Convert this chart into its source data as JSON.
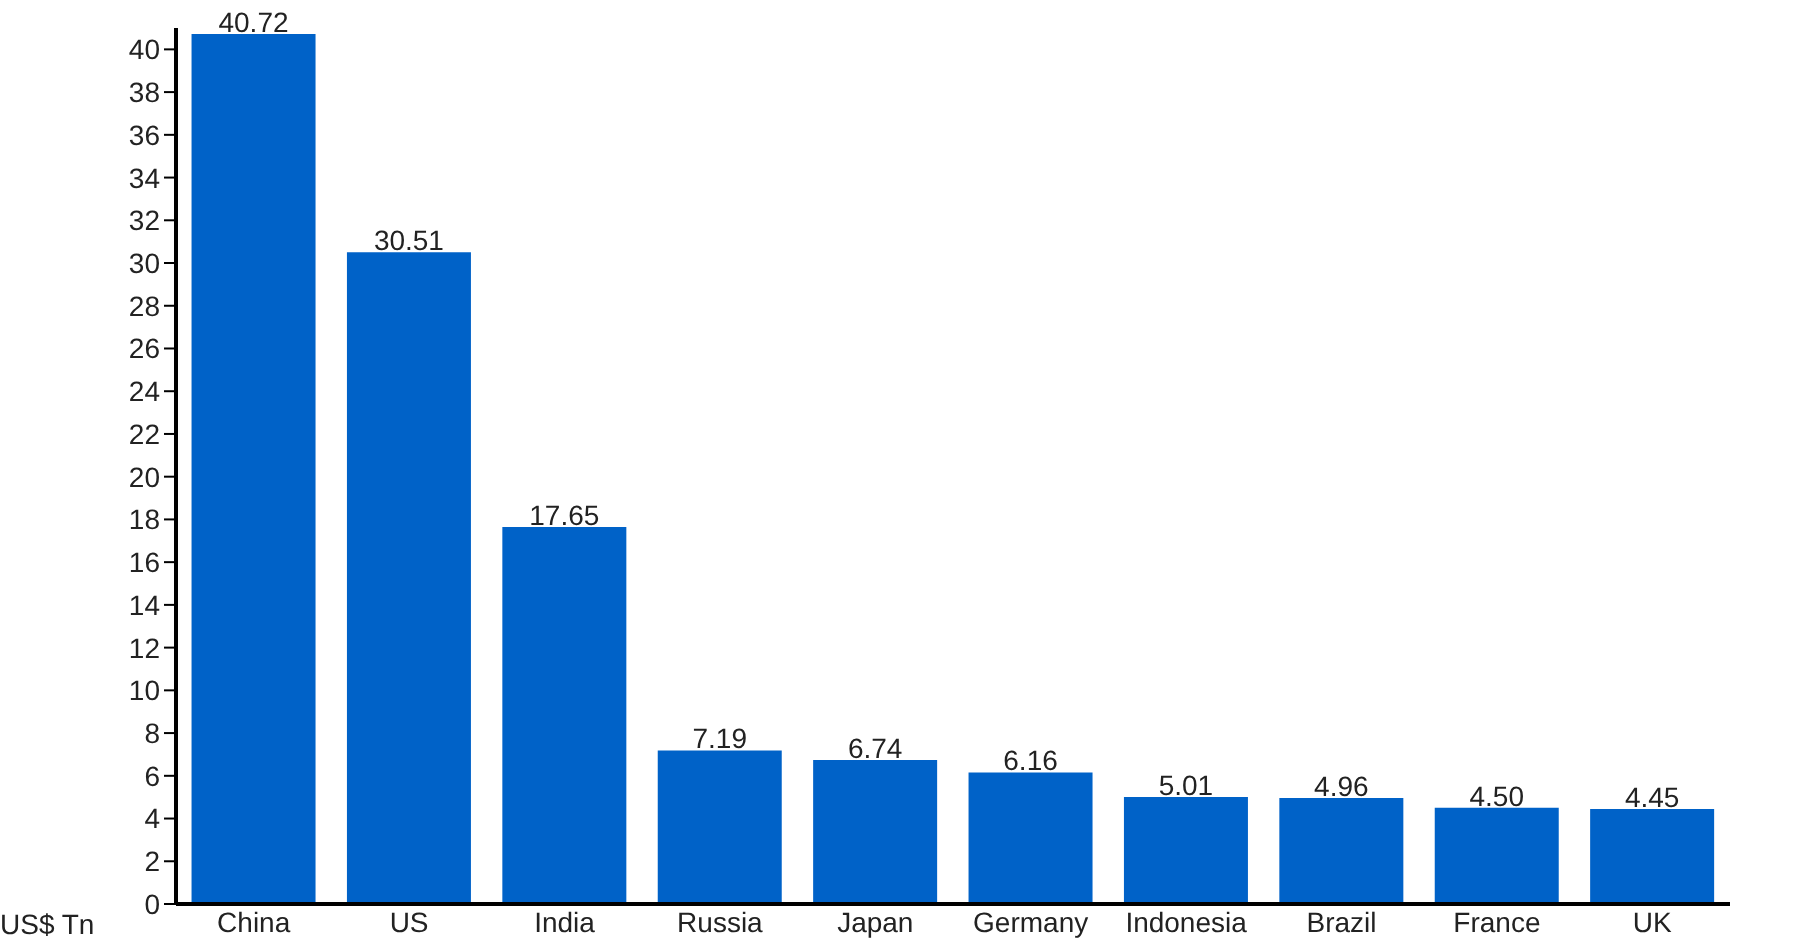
{
  "chart_data": {
    "type": "bar",
    "ylabel": "US$ Tn",
    "categories": [
      "China",
      "US",
      "India",
      "Russia",
      "Japan",
      "Germany",
      "Indonesia",
      "Brazil",
      "France",
      "UK"
    ],
    "values": [
      40.72,
      30.51,
      17.65,
      7.19,
      6.74,
      6.16,
      5.01,
      4.96,
      4.5,
      4.45
    ],
    "value_labels": [
      "40.72",
      "30.51",
      "17.65",
      "7.19",
      "6.74",
      "6.16",
      "5.01",
      "4.96",
      "4.50",
      "4.45"
    ],
    "color": "#0062c8",
    "ylim": [
      0,
      41
    ],
    "yticks": [
      0,
      2,
      4,
      6,
      8,
      10,
      12,
      14,
      16,
      18,
      20,
      22,
      24,
      26,
      28,
      30,
      32,
      34,
      36,
      38,
      40
    ],
    "grid": false
  }
}
